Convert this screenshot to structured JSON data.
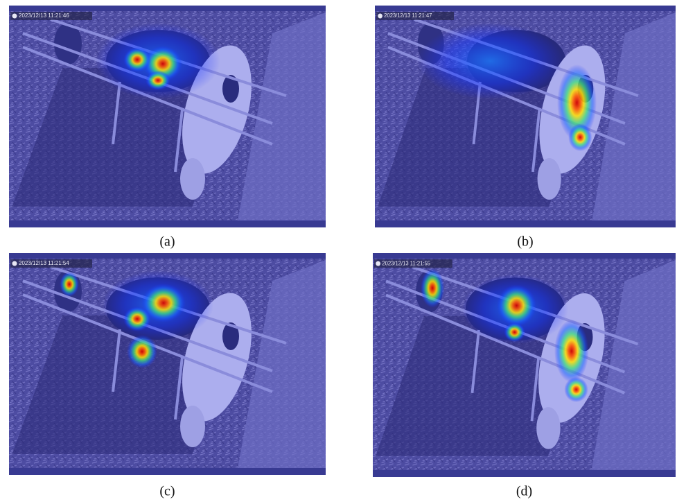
{
  "panels": [
    {
      "timestamp": "2023/12/13 11:21:46",
      "caption": "(a)"
    },
    {
      "timestamp": "2023/12/13 11:21:47",
      "caption": "(b)"
    },
    {
      "timestamp": "2023/12/13 11:21:54",
      "caption": "(c)"
    },
    {
      "timestamp": "2023/12/13 11:21:55",
      "caption": "(d)"
    }
  ]
}
